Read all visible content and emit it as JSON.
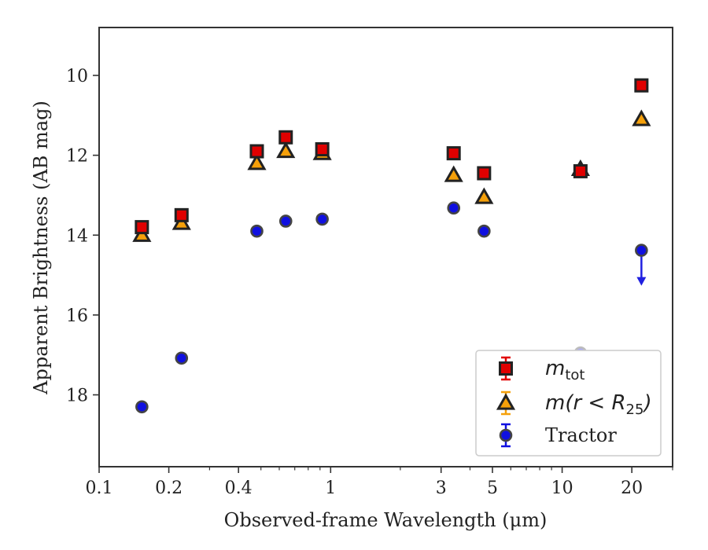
{
  "chart_data": {
    "type": "scatter",
    "title": "",
    "xlabel": "Observed-frame Wavelength (μm)",
    "ylabel": "Apparent Brightness (AB mag)",
    "xscale": "log",
    "xlim": [
      0.1,
      30
    ],
    "ylim": [
      19.8,
      8.8
    ],
    "y_inverted": true,
    "xticks": [
      {
        "value": 0.1,
        "label": "0.1"
      },
      {
        "value": 0.2,
        "label": "0.2"
      },
      {
        "value": 0.4,
        "label": "0.4"
      },
      {
        "value": 1,
        "label": "1"
      },
      {
        "value": 3,
        "label": "3"
      },
      {
        "value": 5,
        "label": "5"
      },
      {
        "value": 10,
        "label": "10"
      },
      {
        "value": 20,
        "label": "20"
      }
    ],
    "yticks": [
      {
        "value": 10,
        "label": "10"
      },
      {
        "value": 12,
        "label": "12"
      },
      {
        "value": 14,
        "label": "14"
      },
      {
        "value": 16,
        "label": "16"
      },
      {
        "value": 18,
        "label": "18"
      }
    ],
    "grid": false,
    "legend_position": "lower-right",
    "series": [
      {
        "name": "m_tot",
        "legend_main": "m",
        "legend_sub": "tot",
        "marker": "square",
        "color": "#e00000",
        "edge_color": "#222222",
        "points": [
          {
            "x": 0.153,
            "y": 13.8
          },
          {
            "x": 0.227,
            "y": 13.5
          },
          {
            "x": 0.48,
            "y": 11.9
          },
          {
            "x": 0.64,
            "y": 11.55
          },
          {
            "x": 0.92,
            "y": 11.85
          },
          {
            "x": 3.4,
            "y": 11.95
          },
          {
            "x": 4.6,
            "y": 12.45
          },
          {
            "x": 12.0,
            "y": 12.4
          },
          {
            "x": 22.0,
            "y": 10.25
          }
        ]
      },
      {
        "name": "m(r < R25)",
        "legend_main": "m(r < R",
        "legend_sub": "25",
        "legend_close": ")",
        "marker": "triangle",
        "color": "#f5a00a",
        "edge_color": "#222222",
        "points": [
          {
            "x": 0.153,
            "y": 14.0
          },
          {
            "x": 0.227,
            "y": 13.7
          },
          {
            "x": 0.48,
            "y": 12.2
          },
          {
            "x": 0.64,
            "y": 11.9
          },
          {
            "x": 0.92,
            "y": 11.95
          },
          {
            "x": 3.4,
            "y": 12.5
          },
          {
            "x": 4.6,
            "y": 13.05
          },
          {
            "x": 12.0,
            "y": 12.35
          },
          {
            "x": 22.0,
            "y": 11.1
          }
        ]
      },
      {
        "name": "Tractor",
        "marker": "circle",
        "color": "#1010e0",
        "edge_color": "#444444",
        "points": [
          {
            "x": 0.153,
            "y": 18.3
          },
          {
            "x": 0.227,
            "y": 17.08
          },
          {
            "x": 0.48,
            "y": 13.9
          },
          {
            "x": 0.64,
            "y": 13.65
          },
          {
            "x": 0.92,
            "y": 13.6
          },
          {
            "x": 3.4,
            "y": 13.32
          },
          {
            "x": 4.6,
            "y": 13.9
          },
          {
            "x": 12.0,
            "y": 16.95,
            "upper_limit": true,
            "faded": true
          },
          {
            "x": 22.0,
            "y": 14.38,
            "upper_limit": true
          }
        ]
      }
    ]
  }
}
